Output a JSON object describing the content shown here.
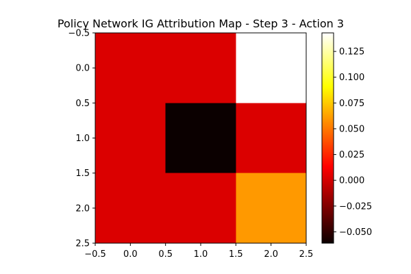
{
  "chart_data": {
    "type": "heatmap",
    "title": "Policy Network IG Attribution Map - Step 3 - Action 3",
    "xlabel": "",
    "ylabel": "",
    "xlim": [
      -0.5,
      2.5
    ],
    "ylim": [
      2.5,
      -0.5
    ],
    "xticks": [
      "−0.5",
      "0.0",
      "0.5",
      "1.0",
      "1.5",
      "2.0",
      "2.5"
    ],
    "yticks": [
      "−0.5",
      "0.0",
      "0.5",
      "1.0",
      "1.5",
      "2.0",
      "2.5"
    ],
    "colormap": "hot",
    "vmin": -0.061,
    "vmax": 0.143,
    "grid": false,
    "values": [
      [
        0.0,
        0.0,
        0.143
      ],
      [
        0.0,
        -0.061,
        0.0
      ],
      [
        0.0,
        0.0,
        0.06
      ]
    ],
    "colorbar": {
      "ticks": [
        -0.05,
        -0.025,
        0.0,
        0.025,
        0.05,
        0.075,
        0.1,
        0.125
      ],
      "tick_labels": [
        "−0.050",
        "−0.025",
        "0.000",
        "0.025",
        "0.050",
        "0.075",
        "0.100",
        "0.125"
      ]
    }
  }
}
